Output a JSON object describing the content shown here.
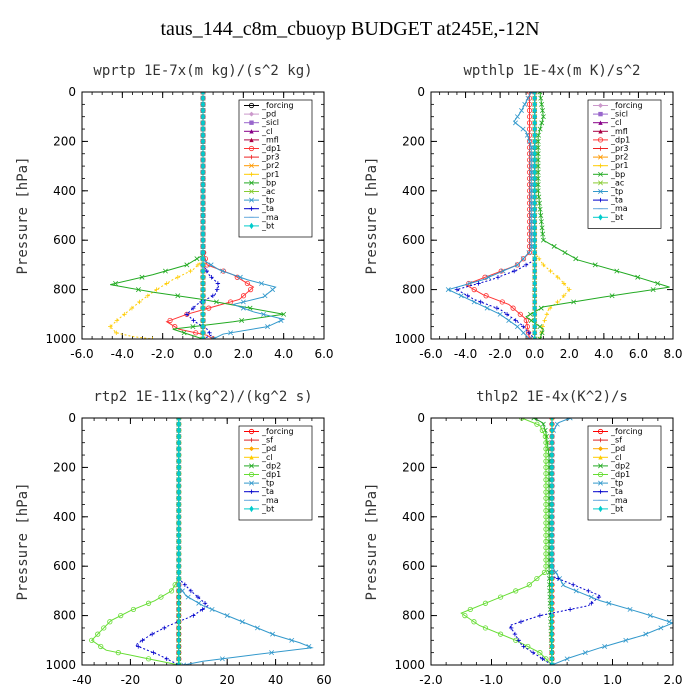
{
  "figure_title": "taus_144_c8m_cbuoyp  BUDGET at245E,-12N",
  "chart_data": [
    {
      "type": "line",
      "title": "wprtp  1E-7x(m kg)/(s^2 kg)",
      "ylabel": "Pressure [hPa]",
      "xlim": [
        -6,
        6
      ],
      "ylim": [
        1000,
        0
      ],
      "xticks": [
        -6,
        -4,
        -2,
        0,
        2,
        4,
        6
      ],
      "xtick_labels": [
        "-6.0",
        "-4.0",
        "-2.0",
        "0.0",
        "2.0",
        "4.0",
        "6.0"
      ],
      "yticks": [
        0,
        200,
        400,
        600,
        800,
        1000
      ],
      "ytick_labels": [
        "0",
        "200",
        "400",
        "600",
        "800",
        "1000"
      ],
      "legend_position": "top-right",
      "series": [
        {
          "name": "_forcing",
          "color": "#000000",
          "marker": "o",
          "x": [
            0,
            0
          ],
          "y": [
            0,
            1000
          ]
        },
        {
          "name": "_pd",
          "color": "#cc99cc",
          "marker": "d",
          "x": [
            0,
            0
          ],
          "y": [
            0,
            1000
          ]
        },
        {
          "name": "_sicl",
          "color": "#9966cc",
          "marker": "s",
          "x": [
            0,
            0
          ],
          "y": [
            0,
            1000
          ]
        },
        {
          "name": "_cl",
          "color": "#880088",
          "marker": "^",
          "x": [
            0,
            0
          ],
          "y": [
            0,
            1000
          ]
        },
        {
          "name": "_mfl",
          "color": "#aa0044",
          "marker": ">",
          "x": [
            0,
            0
          ],
          "y": [
            0,
            1000
          ]
        },
        {
          "name": "_dp1",
          "color": "#ff3333",
          "marker": "o",
          "x": [
            0,
            0,
            0.2,
            1.5,
            2.5,
            1.8,
            0.5,
            -0.8,
            -1.8,
            -1.2,
            0.2,
            0.5
          ],
          "y": [
            0,
            640,
            700,
            740,
            790,
            840,
            870,
            900,
            930,
            960,
            985,
            1000
          ]
        },
        {
          "name": "_pr3",
          "color": "#ee2222",
          "marker": "+",
          "x": [
            0,
            0
          ],
          "y": [
            0,
            1000
          ]
        },
        {
          "name": "_pr2",
          "color": "#ff9900",
          "marker": "x",
          "x": [
            0,
            0
          ],
          "y": [
            0,
            1000
          ]
        },
        {
          "name": "_pr1",
          "color": "#ffcc00",
          "marker": "+",
          "x": [
            0,
            0,
            -0.5,
            -1.5,
            -2.3,
            -3.0,
            -3.6,
            -4.2,
            -4.6,
            -4.3,
            -3.5,
            -2.5
          ],
          "y": [
            0,
            680,
            720,
            760,
            800,
            840,
            880,
            920,
            950,
            975,
            990,
            1000
          ]
        },
        {
          "name": "_bp",
          "color": "#22aa22",
          "marker": "x",
          "x": [
            0,
            0,
            -0.8,
            -2.5,
            -4.6,
            -2.5,
            0,
            2.0,
            4.0,
            1.5,
            -1.5,
            0
          ],
          "y": [
            0,
            660,
            700,
            740,
            780,
            810,
            840,
            870,
            900,
            930,
            960,
            1000
          ]
        },
        {
          "name": "_ac",
          "color": "#88cc33",
          "marker": "x",
          "x": [
            0,
            0
          ],
          "y": [
            0,
            1000
          ]
        },
        {
          "name": "_tp",
          "color": "#3399cc",
          "marker": "x",
          "x": [
            0,
            0,
            0.8,
            2.2,
            3.6,
            3.0,
            1.5,
            2.5,
            4.0,
            3.2,
            1.0,
            0.5
          ],
          "y": [
            0,
            680,
            720,
            760,
            790,
            830,
            860,
            890,
            920,
            950,
            980,
            1000
          ]
        },
        {
          "name": "_ta",
          "color": "#0000cc",
          "marker": "+",
          "x": [
            0,
            0,
            0.3,
            0.8,
            0.6,
            -0.3,
            -0.8,
            -0.4,
            0.2,
            0.4,
            0
          ],
          "y": [
            0,
            700,
            740,
            780,
            820,
            860,
            900,
            930,
            960,
            985,
            1000
          ]
        },
        {
          "name": "_ma",
          "color": "#66aadd",
          "marker": "-",
          "x": [
            0,
            0
          ],
          "y": [
            0,
            1000
          ]
        },
        {
          "name": "_bt",
          "color": "#00cccc",
          "marker": "*",
          "x": [
            0,
            0
          ],
          "y": [
            0,
            1000
          ]
        }
      ]
    },
    {
      "type": "line",
      "title": "wpthlp  1E-4x(m K)/s^2",
      "ylabel": "Pressure [hPa]",
      "xlim": [
        -6,
        8
      ],
      "ylim": [
        1000,
        0
      ],
      "xticks": [
        -6,
        -4,
        -2,
        0,
        2,
        4,
        6,
        8
      ],
      "xtick_labels": [
        "-6.0",
        "-4.0",
        "-2.0",
        "0.0",
        "2.0",
        "4.0",
        "6.0",
        "8.0"
      ],
      "yticks": [
        0,
        200,
        400,
        600,
        800,
        1000
      ],
      "ytick_labels": [
        "0",
        "200",
        "400",
        "600",
        "800",
        "1000"
      ],
      "legend_position": "top-right",
      "series": [
        {
          "name": "_forcing",
          "color": "#cc99cc",
          "marker": "d",
          "x": [
            0,
            0
          ],
          "y": [
            0,
            1000
          ]
        },
        {
          "name": "_sicl",
          "color": "#9966cc",
          "marker": "s",
          "x": [
            0,
            0
          ],
          "y": [
            0,
            1000
          ]
        },
        {
          "name": "_cl",
          "color": "#880088",
          "marker": "^",
          "x": [
            0,
            0
          ],
          "y": [
            0,
            1000
          ]
        },
        {
          "name": "_mfl",
          "color": "#aa0044",
          "marker": ">",
          "x": [
            0,
            0
          ],
          "y": [
            0,
            1000
          ]
        },
        {
          "name": "_dp1",
          "color": "#ff3333",
          "marker": "o",
          "x": [
            -0.3,
            -0.3,
            -1.0,
            -2.5,
            -4.0,
            -3.0,
            -1.5,
            -0.5,
            -0.3
          ],
          "y": [
            0,
            650,
            700,
            740,
            780,
            820,
            860,
            920,
            1000
          ]
        },
        {
          "name": "_pr3",
          "color": "#ee2222",
          "marker": "+",
          "x": [
            0,
            0
          ],
          "y": [
            0,
            1000
          ]
        },
        {
          "name": "_pr2",
          "color": "#ff9900",
          "marker": "x",
          "x": [
            0,
            0
          ],
          "y": [
            0,
            1000
          ]
        },
        {
          "name": "_pr1",
          "color": "#ffcc00",
          "marker": "+",
          "x": [
            0,
            0,
            0.5,
            1.5,
            2.0,
            1.5,
            0.8,
            0.5,
            0.3
          ],
          "y": [
            0,
            650,
            700,
            760,
            800,
            840,
            880,
            940,
            1000
          ]
        },
        {
          "name": "_bp",
          "color": "#22aa22",
          "marker": "x",
          "x": [
            0.3,
            0.5,
            0.2,
            0.2,
            0.5,
            2.5,
            5.5,
            7.8,
            4.0,
            0.5,
            -0.5,
            0.5,
            0.3
          ],
          "y": [
            0,
            100,
            180,
            400,
            600,
            680,
            740,
            790,
            830,
            870,
            910,
            960,
            1000
          ]
        },
        {
          "name": "_ac",
          "color": "#88cc33",
          "marker": "x",
          "x": [
            0,
            0
          ],
          "y": [
            0,
            1000
          ]
        },
        {
          "name": "_tp",
          "color": "#3399cc",
          "marker": "x",
          "x": [
            -0.2,
            -0.8,
            -1.2,
            -0.5,
            -0.2,
            -0.2,
            -1.0,
            -3.0,
            -5.0,
            -3.5,
            -2.0,
            -1.0,
            -0.3
          ],
          "y": [
            0,
            80,
            120,
            160,
            220,
            640,
            700,
            760,
            800,
            850,
            900,
            950,
            1000
          ]
        },
        {
          "name": "_ta",
          "color": "#0000cc",
          "marker": "+",
          "x": [
            0,
            0,
            -1.0,
            -2.5,
            -4.5,
            -3.5,
            -2.0,
            -0.8,
            0
          ],
          "y": [
            0,
            680,
            720,
            760,
            800,
            840,
            880,
            940,
            1000
          ]
        },
        {
          "name": "_ma",
          "color": "#66aadd",
          "marker": "-",
          "x": [
            0,
            0
          ],
          "y": [
            0,
            1000
          ]
        },
        {
          "name": "_bt",
          "color": "#00cccc",
          "marker": "*",
          "x": [
            0,
            0
          ],
          "y": [
            0,
            1000
          ]
        }
      ]
    },
    {
      "type": "line",
      "title": "rtp2  1E-11x(kg^2)/(kg^2 s)",
      "ylabel": "Pressure [hPa]",
      "xlim": [
        -40,
        60
      ],
      "ylim": [
        1000,
        0
      ],
      "xticks": [
        -40,
        -20,
        0,
        20,
        40,
        60
      ],
      "xtick_labels": [
        "-40",
        "-20",
        "0",
        "20",
        "40",
        "60"
      ],
      "yticks": [
        0,
        200,
        400,
        600,
        800,
        1000
      ],
      "ytick_labels": [
        "0",
        "200",
        "400",
        "600",
        "800",
        "1000"
      ],
      "legend_position": "top-right",
      "series": [
        {
          "name": "_forcing",
          "color": "#ff0000",
          "marker": "o",
          "x": [
            0,
            0
          ],
          "y": [
            0,
            1000
          ]
        },
        {
          "name": "_sf",
          "color": "#dd2222",
          "marker": "+",
          "x": [
            0,
            0
          ],
          "y": [
            0,
            1000
          ]
        },
        {
          "name": "_pd",
          "color": "#ffaa00",
          "marker": "d",
          "x": [
            0,
            0
          ],
          "y": [
            0,
            1000
          ]
        },
        {
          "name": "_cl",
          "color": "#ffcc00",
          "marker": "^",
          "x": [
            0,
            0
          ],
          "y": [
            0,
            1000
          ]
        },
        {
          "name": "_dp2",
          "color": "#22aa22",
          "marker": "x",
          "x": [
            0,
            0
          ],
          "y": [
            0,
            1000
          ]
        },
        {
          "name": "_dp1",
          "color": "#66dd33",
          "marker": "o",
          "x": [
            0,
            0,
            -3,
            -10,
            -20,
            -28,
            -32,
            -36,
            -30,
            -15,
            -5,
            0
          ],
          "y": [
            0,
            650,
            700,
            740,
            780,
            820,
            860,
            900,
            940,
            970,
            990,
            1000
          ]
        },
        {
          "name": "_tp",
          "color": "#3399cc",
          "marker": "x",
          "x": [
            0,
            0,
            3,
            10,
            20,
            30,
            40,
            50,
            55,
            30,
            10,
            2
          ],
          "y": [
            0,
            680,
            720,
            760,
            800,
            840,
            880,
            910,
            930,
            960,
            985,
            1000
          ]
        },
        {
          "name": "_ta",
          "color": "#0000cc",
          "marker": "+",
          "x": [
            0,
            0,
            5,
            12,
            6,
            -4,
            -12,
            -18,
            -8,
            0
          ],
          "y": [
            0,
            650,
            700,
            760,
            800,
            840,
            880,
            920,
            960,
            1000
          ]
        },
        {
          "name": "_ma",
          "color": "#66aadd",
          "marker": "-",
          "x": [
            0,
            0
          ],
          "y": [
            0,
            1000
          ]
        },
        {
          "name": "_bt",
          "color": "#00cccc",
          "marker": "*",
          "x": [
            0,
            0
          ],
          "y": [
            0,
            1000
          ]
        }
      ]
    },
    {
      "type": "line",
      "title": "thlp2  1E-4x(K^2)/s",
      "ylabel": "Pressure [hPa]",
      "xlim": [
        -2,
        2
      ],
      "ylim": [
        1000,
        0
      ],
      "xticks": [
        -2,
        -1,
        0,
        1,
        2
      ],
      "xtick_labels": [
        "-2.0",
        "-1.0",
        "0.0",
        "1.0",
        "2.0"
      ],
      "yticks": [
        0,
        200,
        400,
        600,
        800,
        1000
      ],
      "ytick_labels": [
        "0",
        "200",
        "400",
        "600",
        "800",
        "1000"
      ],
      "legend_position": "top-right",
      "series": [
        {
          "name": "_forcing",
          "color": "#ff0000",
          "marker": "o",
          "x": [
            0,
            0
          ],
          "y": [
            0,
            1000
          ]
        },
        {
          "name": "_sf",
          "color": "#dd2222",
          "marker": "+",
          "x": [
            0,
            0
          ],
          "y": [
            0,
            1000
          ]
        },
        {
          "name": "_pd",
          "color": "#ffaa00",
          "marker": "d",
          "x": [
            0,
            0
          ],
          "y": [
            0,
            1000
          ]
        },
        {
          "name": "_cl",
          "color": "#ffcc00",
          "marker": "^",
          "x": [
            0,
            0
          ],
          "y": [
            0,
            1000
          ]
        },
        {
          "name": "_dp2",
          "color": "#22aa22",
          "marker": "x",
          "x": [
            -0.3,
            -0.15,
            -0.1,
            -0.05,
            -0.05,
            0
          ],
          "y": [
            0,
            20,
            60,
            150,
            600,
            1000
          ]
        },
        {
          "name": "_dp1",
          "color": "#66dd33",
          "marker": "o",
          "x": [
            -0.5,
            -0.2,
            -0.1,
            -0.1,
            -0.1,
            -0.4,
            -1.0,
            -1.5,
            -1.2,
            -0.6,
            -0.2,
            0
          ],
          "y": [
            0,
            30,
            80,
            200,
            620,
            680,
            740,
            790,
            840,
            900,
            950,
            1000
          ]
        },
        {
          "name": "_tp",
          "color": "#3399cc",
          "marker": "x",
          "x": [
            0.3,
            0.1,
            0,
            0,
            0.2,
            0.8,
            1.5,
            2.0,
            1.5,
            0.8,
            0.3,
            0
          ],
          "y": [
            0,
            20,
            60,
            600,
            680,
            740,
            790,
            830,
            880,
            930,
            970,
            1000
          ]
        },
        {
          "name": "_ta",
          "color": "#0000cc",
          "marker": "+",
          "x": [
            0,
            0,
            0.4,
            0.8,
            0.6,
            -0.2,
            -0.7,
            -0.5,
            0
          ],
          "y": [
            0,
            640,
            680,
            720,
            760,
            800,
            840,
            920,
            1000
          ]
        },
        {
          "name": "_ma",
          "color": "#66aadd",
          "marker": "-",
          "x": [
            0,
            0
          ],
          "y": [
            0,
            1000
          ]
        },
        {
          "name": "_bt",
          "color": "#00cccc",
          "marker": "*",
          "x": [
            0,
            0
          ],
          "y": [
            0,
            1000
          ]
        }
      ]
    }
  ]
}
